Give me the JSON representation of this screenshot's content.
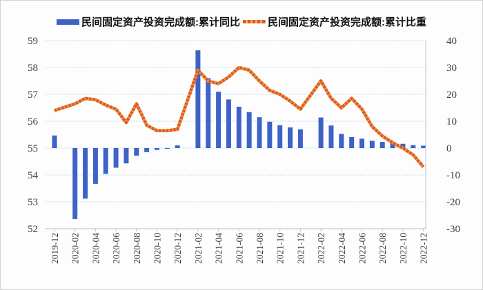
{
  "legend": [
    {
      "label": "民间固定资产投资完成额:累计同比",
      "color": "#3d63c6",
      "marker": "bar"
    },
    {
      "label": "民间固定资产投资完成额:累计比重",
      "color": "#ed7631",
      "marker": "dashed-line"
    }
  ],
  "colors": {
    "bar": "#3d63c6",
    "line_base": "#f08b45",
    "line_dash": "#dd5a1c",
    "gridline": "#bcd2ec",
    "axis_line": "#bfbfbf",
    "axis_text": "#3f3f3f"
  },
  "chart_data": {
    "type": "combo",
    "categories": [
      "2019-12",
      "2020-02",
      "2020-03",
      "2020-04",
      "2020-05",
      "2020-06",
      "2020-07",
      "2020-08",
      "2020-09",
      "2020-10",
      "2020-11",
      "2020-12",
      "2021-02",
      "2021-03",
      "2021-04",
      "2021-05",
      "2021-06",
      "2021-07",
      "2021-08",
      "2021-09",
      "2021-10",
      "2021-11",
      "2021-12",
      "2022-02",
      "2022-03",
      "2022-04",
      "2022-05",
      "2022-06",
      "2022-07",
      "2022-08",
      "2022-09",
      "2022-10",
      "2022-11",
      "2022-12"
    ],
    "series": [
      {
        "name": "民间固定资产投资完成额:累计同比",
        "type": "bar",
        "axis": "right",
        "values": [
          4.7,
          -26.4,
          -18.8,
          -13.3,
          -9.6,
          -7.3,
          -5.7,
          -2.8,
          -1.5,
          -0.7,
          -0.2,
          1.0,
          36.4,
          26.0,
          21.0,
          18.1,
          15.4,
          13.4,
          11.5,
          9.8,
          8.5,
          7.7,
          7.0,
          11.4,
          8.4,
          5.3,
          4.1,
          3.5,
          2.7,
          2.3,
          2.0,
          1.6,
          1.1,
          0.9
        ]
      },
      {
        "name": "民间固定资产投资完成额:累计比重",
        "type": "line",
        "axis": "left",
        "values": [
          56.4,
          56.65,
          56.85,
          56.8,
          56.6,
          56.45,
          55.95,
          56.65,
          55.85,
          55.65,
          55.65,
          55.7,
          57.9,
          57.5,
          57.4,
          57.65,
          58.0,
          57.9,
          57.5,
          57.15,
          57.0,
          56.75,
          56.45,
          57.5,
          56.85,
          56.5,
          56.85,
          56.45,
          55.8,
          55.45,
          55.2,
          55.0,
          54.75,
          54.3
        ]
      }
    ],
    "left_axis": {
      "min": 52,
      "max": 59,
      "step": 1,
      "ticks": [
        "52",
        "53",
        "54",
        "55",
        "56",
        "57",
        "58",
        "59"
      ]
    },
    "right_axis": {
      "min": -30,
      "max": 40,
      "step": 10,
      "ticks": [
        "-30",
        "-20",
        "-10",
        "0",
        "10",
        "20",
        "30",
        "40"
      ]
    },
    "x_tick_labels": [
      "2019-12",
      "2020-02",
      "2020-04",
      "2020-06",
      "2020-08",
      "2020-10",
      "2020-12",
      "2021-02",
      "2021-04",
      "2021-06",
      "2021-08",
      "2021-10",
      "2021-12",
      "2022-02",
      "2022-04",
      "2022-06",
      "2022-08",
      "2022-10",
      "2022-12"
    ],
    "grid": "dotted-horizontal",
    "legend_position": "top",
    "title": ""
  }
}
